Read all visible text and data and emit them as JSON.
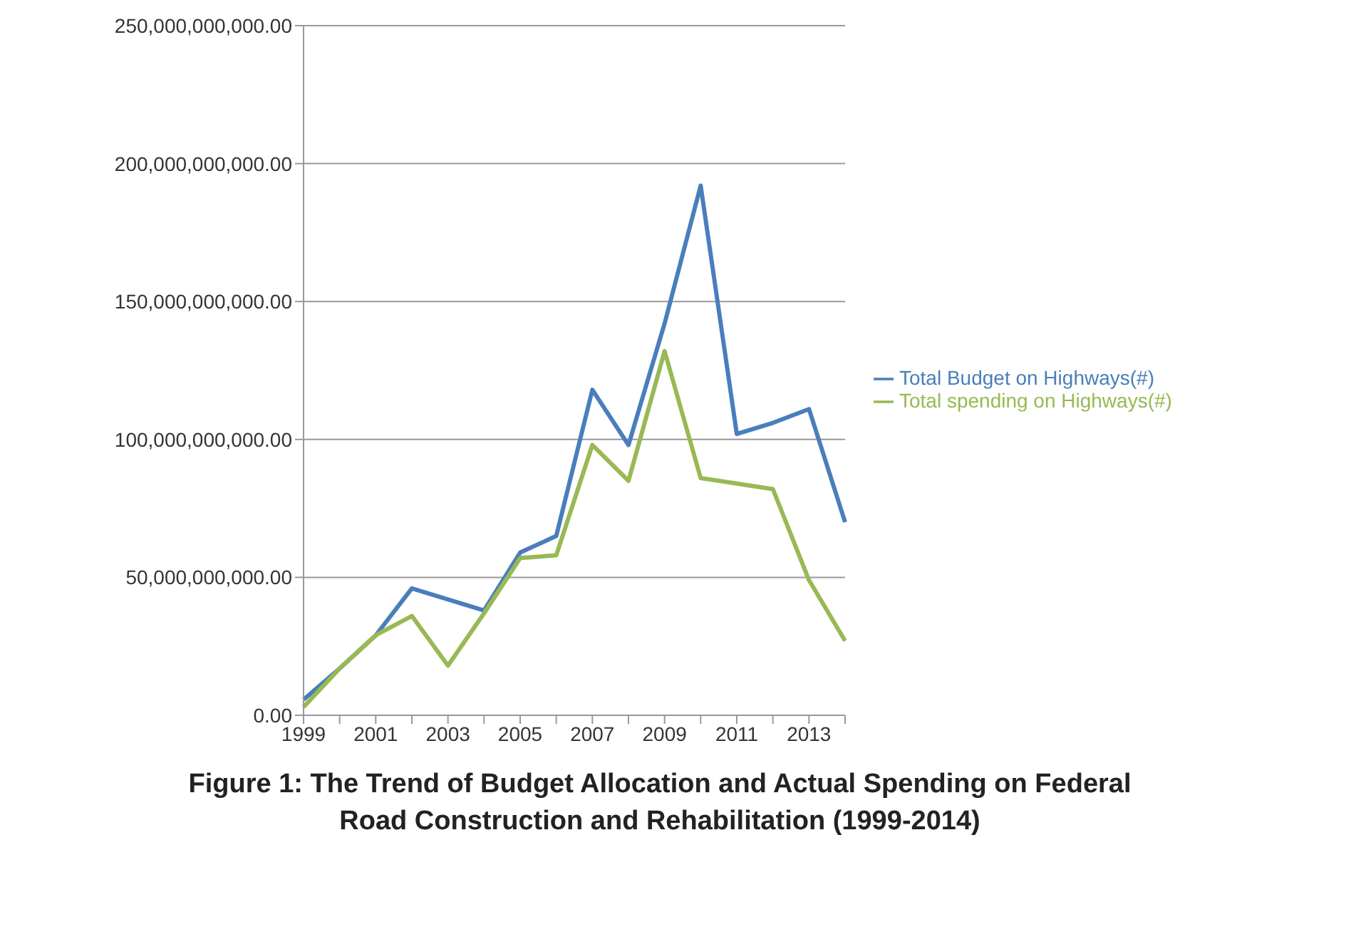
{
  "chart_data": {
    "type": "line",
    "title": "Figure 1: The Trend of Budget Allocation and Actual Spending on Federal Road Construction and Rehabilitation (1999-2014)",
    "categories": [
      "1999",
      null,
      "2001",
      null,
      "2003",
      null,
      "2005",
      null,
      "2007",
      null,
      "2009",
      null,
      "2011",
      null,
      "2013",
      null
    ],
    "series": [
      {
        "name": "Total Budget on Highways(#)",
        "color": "#4a7ebb",
        "values": [
          5700000000,
          17000000000,
          29000000000,
          46000000000,
          42000000000,
          38000000000,
          59000000000,
          65000000000,
          118000000000,
          98000000000,
          142000000000,
          192000000000,
          102000000000,
          106000000000,
          111000000000,
          70000000000
        ]
      },
      {
        "name": "Total spending on Highways(#)",
        "color": "#98b954",
        "values": [
          3000000000,
          17000000000,
          29000000000,
          36000000000,
          18000000000,
          37000000000,
          57000000000,
          58000000000,
          98000000000,
          85000000000,
          132000000000,
          86000000000,
          84000000000,
          82000000000,
          49000000000,
          27000000000
        ]
      }
    ],
    "ylim": [
      0,
      250000000000
    ],
    "yticks": [
      {
        "value": 0,
        "label": "0.00"
      },
      {
        "value": 50000000000,
        "label": "50,000,000,000.00"
      },
      {
        "value": 100000000000,
        "label": "100,000,000,000.00"
      },
      {
        "value": 150000000000,
        "label": "150,000,000,000.00"
      },
      {
        "value": 200000000000,
        "label": "200,000,000,000.00"
      },
      {
        "value": 250000000000,
        "label": "250,000,000,000.00"
      }
    ],
    "grid": "y",
    "legend": "right",
    "marker": "none",
    "line_style": "solid"
  }
}
